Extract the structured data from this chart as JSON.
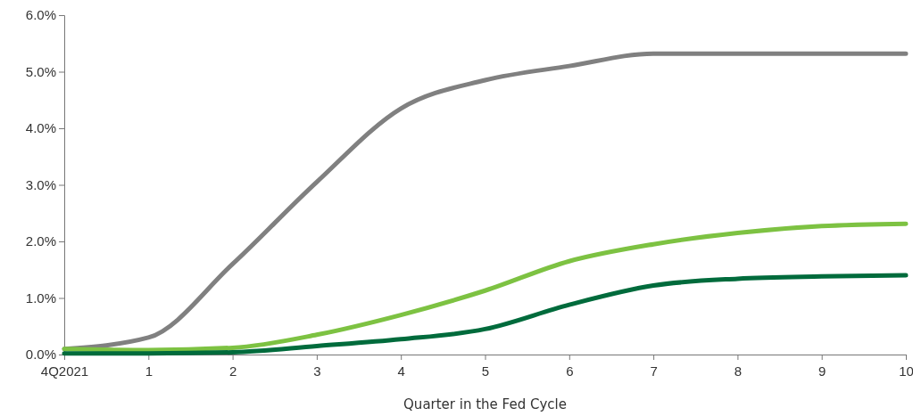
{
  "chart_data": {
    "type": "line",
    "xlabel": "Quarter in the Fed Cycle",
    "x": [
      0,
      1,
      2,
      3,
      4,
      5,
      6,
      7,
      8,
      9,
      10
    ],
    "xlim": [
      0,
      10
    ],
    "xticks": [
      {
        "value": 0,
        "label": "4Q2021"
      },
      1,
      2,
      3,
      4,
      5,
      6,
      7,
      8,
      9,
      10
    ],
    "ylim": [
      0,
      6
    ],
    "yticks": [
      {
        "value": 0,
        "label": "0.0%"
      },
      {
        "value": 1,
        "label": "1.0%"
      },
      {
        "value": 2,
        "label": "2.0%"
      },
      {
        "value": 3,
        "label": "3.0%"
      },
      {
        "value": 4,
        "label": "4.0%"
      },
      {
        "value": 5,
        "label": "5.0%"
      },
      {
        "value": 6,
        "label": "6.0%"
      }
    ],
    "grid": false,
    "marker": "none",
    "line_style": "solid",
    "series": [
      {
        "color": "#808080",
        "values": [
          0.1,
          0.3,
          1.6,
          3.05,
          4.35,
          4.85,
          5.1,
          5.32,
          5.32,
          5.32,
          5.32
        ]
      },
      {
        "color": "#7dc242",
        "values": [
          0.1,
          0.08,
          0.12,
          0.35,
          0.7,
          1.13,
          1.65,
          1.95,
          2.15,
          2.27,
          2.31
        ]
      },
      {
        "color": "#006b3c",
        "values": [
          0.02,
          0.02,
          0.04,
          0.15,
          0.27,
          0.45,
          0.88,
          1.22,
          1.34,
          1.38,
          1.4
        ]
      }
    ]
  }
}
